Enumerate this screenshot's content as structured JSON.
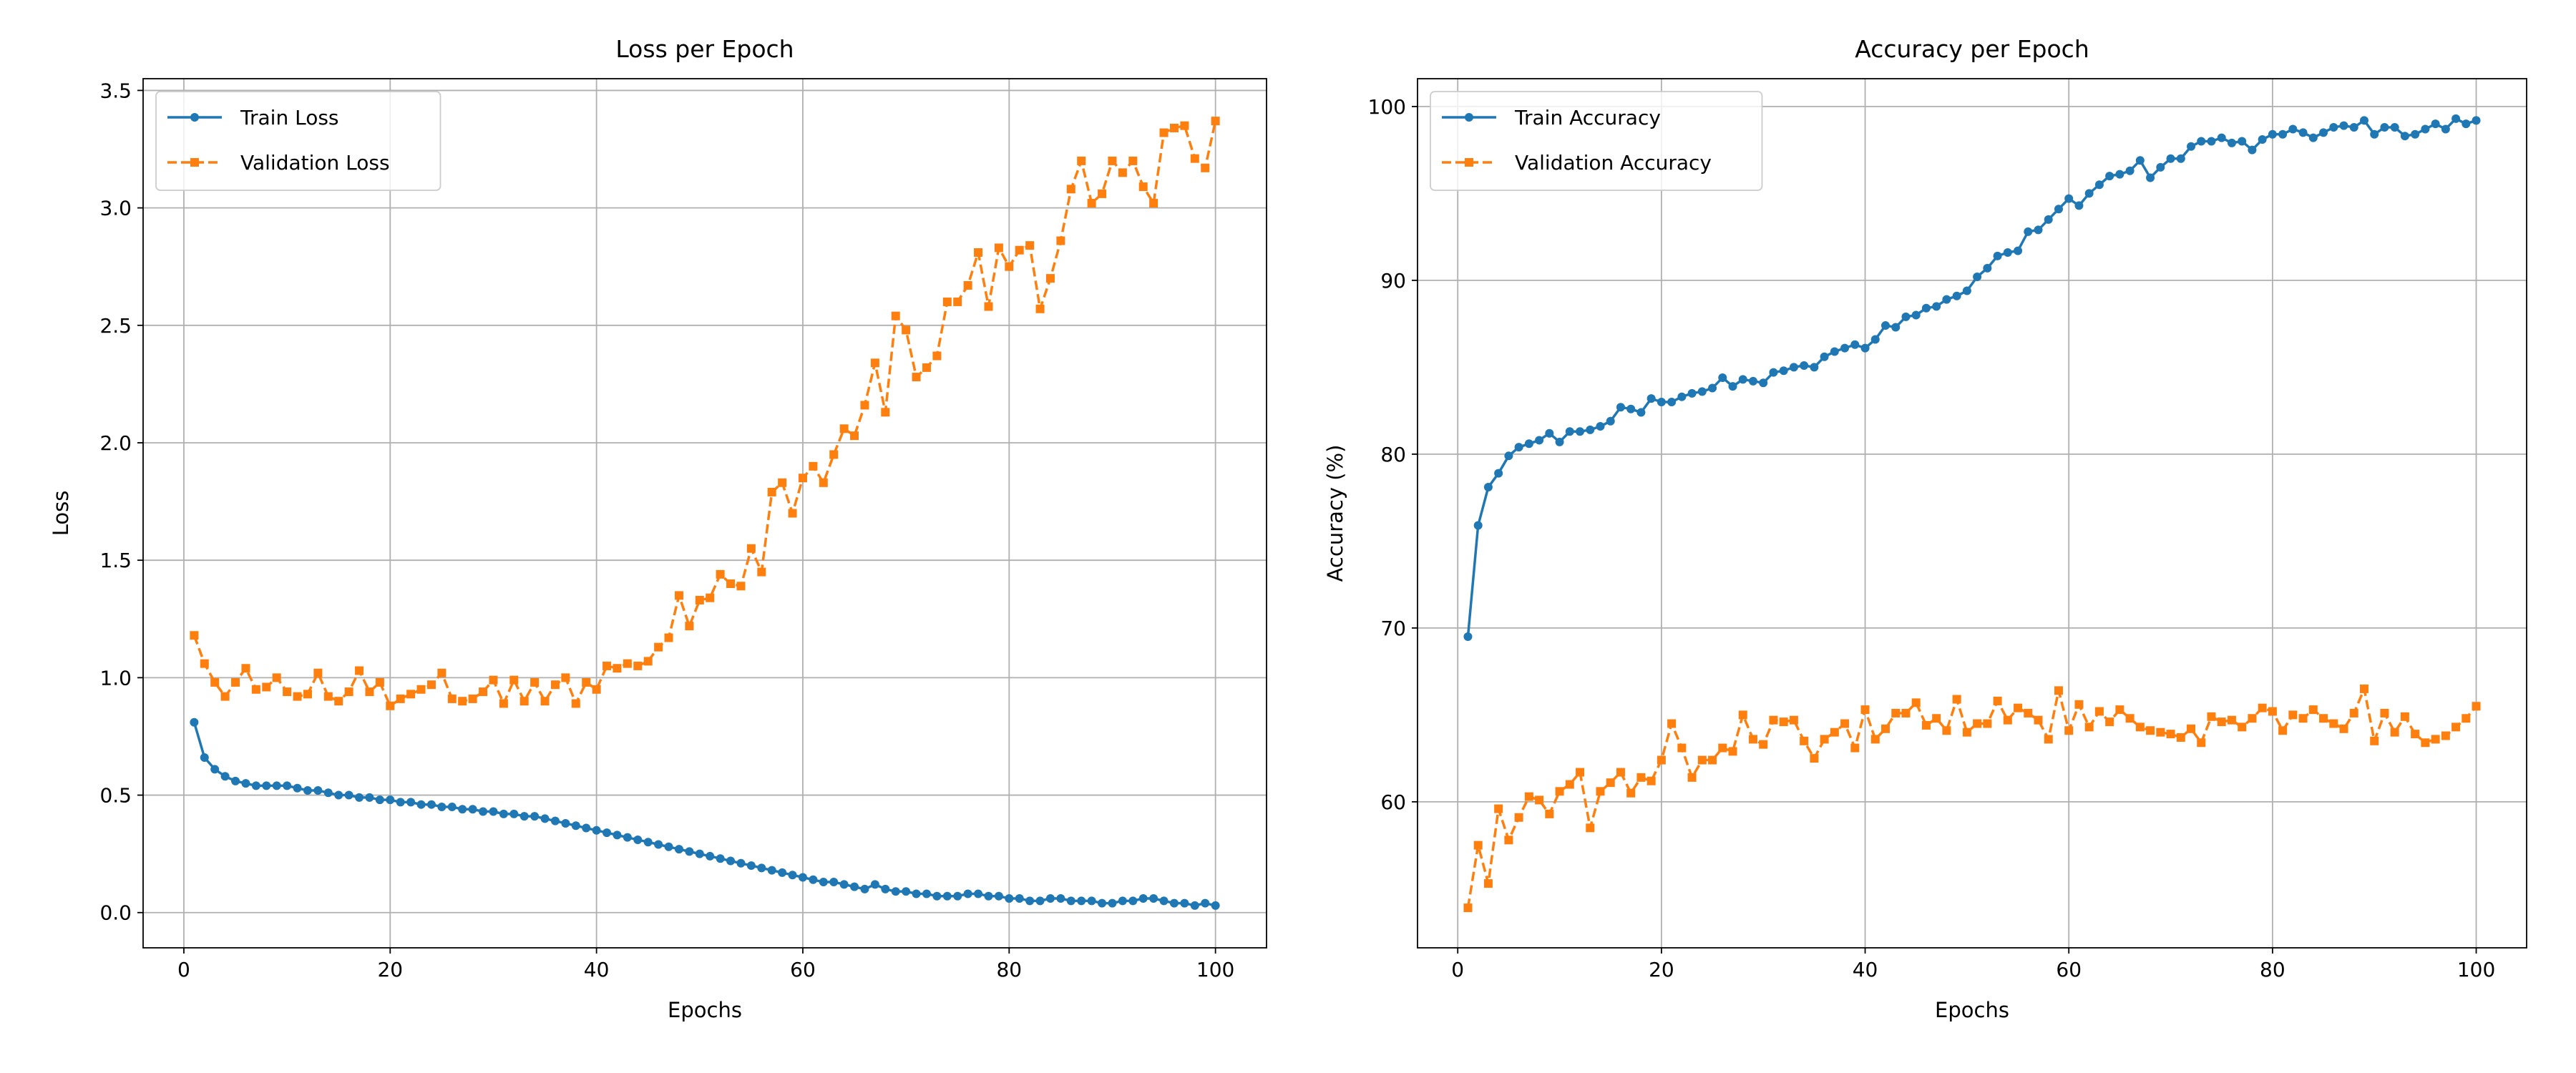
{
  "chart_data": [
    {
      "type": "line",
      "title": "Loss per Epoch",
      "xlabel": "Epochs",
      "ylabel": "Loss",
      "x": [
        1,
        2,
        3,
        4,
        5,
        6,
        7,
        8,
        9,
        10,
        11,
        12,
        13,
        14,
        15,
        16,
        17,
        18,
        19,
        20,
        21,
        22,
        23,
        24,
        25,
        26,
        27,
        28,
        29,
        30,
        31,
        32,
        33,
        34,
        35,
        36,
        37,
        38,
        39,
        40,
        41,
        42,
        43,
        44,
        45,
        46,
        47,
        48,
        49,
        50,
        51,
        52,
        53,
        54,
        55,
        56,
        57,
        58,
        59,
        60,
        61,
        62,
        63,
        64,
        65,
        66,
        67,
        68,
        69,
        70,
        71,
        72,
        73,
        74,
        75,
        76,
        77,
        78,
        79,
        80,
        81,
        82,
        83,
        84,
        85,
        86,
        87,
        88,
        89,
        90,
        91,
        92,
        93,
        94,
        95,
        96,
        97,
        98,
        99,
        100
      ],
      "series": [
        {
          "name": "Train Loss",
          "color": "#1f77b4",
          "marker": "o",
          "linestyle": "-",
          "values": [
            0.81,
            0.66,
            0.61,
            0.58,
            0.56,
            0.55,
            0.54,
            0.54,
            0.54,
            0.54,
            0.53,
            0.52,
            0.52,
            0.51,
            0.5,
            0.5,
            0.49,
            0.49,
            0.48,
            0.48,
            0.47,
            0.47,
            0.46,
            0.46,
            0.45,
            0.45,
            0.44,
            0.44,
            0.43,
            0.43,
            0.42,
            0.42,
            0.41,
            0.41,
            0.4,
            0.39,
            0.38,
            0.37,
            0.36,
            0.35,
            0.34,
            0.33,
            0.32,
            0.31,
            0.3,
            0.29,
            0.28,
            0.27,
            0.26,
            0.25,
            0.24,
            0.23,
            0.22,
            0.21,
            0.2,
            0.19,
            0.18,
            0.17,
            0.16,
            0.15,
            0.14,
            0.13,
            0.13,
            0.12,
            0.11,
            0.1,
            0.12,
            0.1,
            0.09,
            0.09,
            0.08,
            0.08,
            0.07,
            0.07,
            0.07,
            0.08,
            0.08,
            0.07,
            0.07,
            0.06,
            0.06,
            0.05,
            0.05,
            0.06,
            0.06,
            0.05,
            0.05,
            0.05,
            0.04,
            0.04,
            0.05,
            0.05,
            0.06,
            0.06,
            0.05,
            0.04,
            0.04,
            0.03,
            0.04,
            0.03
          ]
        },
        {
          "name": "Validation Loss",
          "color": "#ff7f0e",
          "marker": "s",
          "linestyle": "--",
          "values": [
            1.18,
            1.06,
            0.98,
            0.92,
            0.98,
            1.04,
            0.95,
            0.96,
            1.0,
            0.94,
            0.92,
            0.93,
            1.02,
            0.92,
            0.9,
            0.94,
            1.03,
            0.94,
            0.98,
            0.88,
            0.91,
            0.93,
            0.95,
            0.97,
            1.02,
            0.91,
            0.9,
            0.91,
            0.94,
            0.99,
            0.89,
            0.99,
            0.9,
            0.98,
            0.9,
            0.97,
            1.0,
            0.89,
            0.98,
            0.95,
            1.05,
            1.04,
            1.06,
            1.05,
            1.07,
            1.13,
            1.17,
            1.35,
            1.22,
            1.33,
            1.34,
            1.44,
            1.4,
            1.39,
            1.55,
            1.45,
            1.79,
            1.83,
            1.7,
            1.85,
            1.9,
            1.83,
            1.95,
            2.06,
            2.03,
            2.16,
            2.34,
            2.13,
            2.54,
            2.48,
            2.28,
            2.32,
            2.37,
            2.6,
            2.6,
            2.67,
            2.81,
            2.58,
            2.83,
            2.75,
            2.82,
            2.84,
            2.57,
            2.7,
            2.86,
            3.08,
            3.2,
            3.02,
            3.06,
            3.2,
            3.15,
            3.2,
            3.09,
            3.02,
            3.32,
            3.34,
            3.35,
            3.21,
            3.17,
            3.37
          ]
        }
      ],
      "xlim": [
        -3.95,
        104.95
      ],
      "ylim": [
        -0.15,
        3.55
      ],
      "xticks": [
        0,
        20,
        40,
        60,
        80,
        100
      ],
      "yticks": [
        {
          "value": 0,
          "label": "0.0"
        },
        0.5,
        {
          "value": 1,
          "label": "1.0"
        },
        1.5,
        {
          "value": 2,
          "label": "2.0"
        },
        2.5,
        {
          "value": 3,
          "label": "3.0"
        },
        3.5
      ],
      "grid": true,
      "legend": "upper left"
    },
    {
      "type": "line",
      "title": "Accuracy per Epoch",
      "xlabel": "Epochs",
      "ylabel": "Accuracy (%)",
      "x": [
        1,
        2,
        3,
        4,
        5,
        6,
        7,
        8,
        9,
        10,
        11,
        12,
        13,
        14,
        15,
        16,
        17,
        18,
        19,
        20,
        21,
        22,
        23,
        24,
        25,
        26,
        27,
        28,
        29,
        30,
        31,
        32,
        33,
        34,
        35,
        36,
        37,
        38,
        39,
        40,
        41,
        42,
        43,
        44,
        45,
        46,
        47,
        48,
        49,
        50,
        51,
        52,
        53,
        54,
        55,
        56,
        57,
        58,
        59,
        60,
        61,
        62,
        63,
        64,
        65,
        66,
        67,
        68,
        69,
        70,
        71,
        72,
        73,
        74,
        75,
        76,
        77,
        78,
        79,
        80,
        81,
        82,
        83,
        84,
        85,
        86,
        87,
        88,
        89,
        90,
        91,
        92,
        93,
        94,
        95,
        96,
        97,
        98,
        99,
        100
      ],
      "series": [
        {
          "name": "Train Accuracy",
          "color": "#1f77b4",
          "marker": "o",
          "linestyle": "-",
          "values": [
            69.5,
            75.9,
            78.1,
            78.9,
            79.9,
            80.4,
            80.6,
            80.8,
            81.2,
            80.7,
            81.3,
            81.3,
            81.4,
            81.6,
            81.9,
            82.7,
            82.6,
            82.4,
            83.2,
            83.0,
            83.0,
            83.3,
            83.5,
            83.6,
            83.8,
            84.4,
            83.9,
            84.3,
            84.2,
            84.1,
            84.7,
            84.8,
            85.0,
            85.1,
            85.0,
            85.6,
            85.9,
            86.1,
            86.3,
            86.1,
            86.6,
            87.4,
            87.3,
            87.9,
            88.0,
            88.4,
            88.5,
            88.9,
            89.1,
            89.4,
            90.2,
            90.7,
            91.4,
            91.6,
            91.7,
            92.8,
            92.9,
            93.5,
            94.1,
            94.7,
            94.3,
            95.0,
            95.5,
            96.0,
            96.1,
            96.3,
            96.9,
            95.9,
            96.5,
            97.0,
            97.0,
            97.7,
            98.0,
            98.0,
            98.2,
            97.9,
            98.0,
            97.5,
            98.1,
            98.4,
            98.4,
            98.7,
            98.5,
            98.2,
            98.5,
            98.8,
            98.9,
            98.8,
            99.2,
            98.4,
            98.8,
            98.8,
            98.3,
            98.4,
            98.7,
            99.0,
            98.7,
            99.3,
            99.0,
            99.2
          ]
        },
        {
          "name": "Validation Accuracy",
          "color": "#ff7f0e",
          "marker": "s",
          "linestyle": "--",
          "values": [
            53.9,
            57.5,
            55.3,
            59.6,
            57.8,
            59.1,
            60.3,
            60.1,
            59.3,
            60.6,
            61.0,
            61.7,
            58.5,
            60.6,
            61.1,
            61.7,
            60.5,
            61.4,
            61.2,
            62.4,
            64.5,
            63.1,
            61.4,
            62.4,
            62.4,
            63.1,
            62.9,
            65.0,
            63.6,
            63.3,
            64.7,
            64.6,
            64.7,
            63.5,
            62.5,
            63.6,
            64.0,
            64.5,
            63.1,
            65.3,
            63.6,
            64.2,
            65.1,
            65.1,
            65.7,
            64.4,
            64.8,
            64.1,
            65.9,
            64.0,
            64.5,
            64.5,
            65.8,
            64.7,
            65.4,
            65.1,
            64.7,
            63.6,
            66.4,
            64.1,
            65.6,
            64.3,
            65.2,
            64.6,
            65.3,
            64.8,
            64.3,
            64.1,
            64.0,
            63.9,
            63.7,
            64.2,
            63.4,
            64.9,
            64.6,
            64.7,
            64.3,
            64.8,
            65.4,
            65.2,
            64.1,
            65.0,
            64.8,
            65.3,
            64.8,
            64.5,
            64.2,
            65.1,
            66.5,
            63.5,
            65.1,
            64.0,
            64.9,
            63.9,
            63.4,
            63.6,
            63.8,
            64.3,
            64.8,
            65.5
          ]
        }
      ],
      "xlim": [
        -3.95,
        104.95
      ],
      "ylim": [
        51.6,
        101.6
      ],
      "xticks": [
        0,
        20,
        40,
        60,
        80,
        100
      ],
      "yticks": [
        60,
        70,
        80,
        90,
        100
      ],
      "grid": true,
      "legend": "upper left"
    }
  ]
}
